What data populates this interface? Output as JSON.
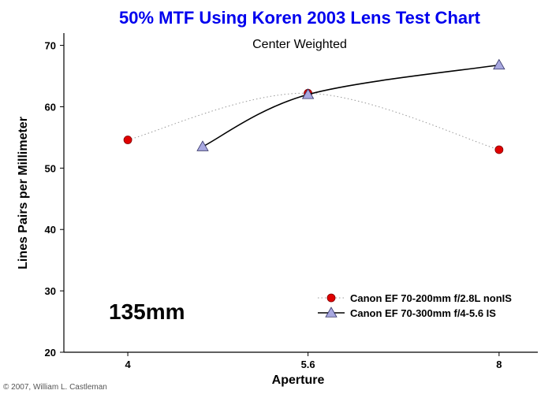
{
  "chart_data": {
    "type": "line",
    "title": "50% MTF Using Koren 2003 Lens Test Chart",
    "subtitle": "Center Weighted",
    "xlabel": "Aperture",
    "ylabel": "Lines Pairs per Millimeter",
    "x_scale": "log",
    "xlim": [
      3.55,
      8.6
    ],
    "ylim": [
      20,
      72
    ],
    "x_ticks": [
      4,
      5.6,
      8
    ],
    "x_tick_labels": [
      "4",
      "5.6",
      "8"
    ],
    "y_ticks": [
      20,
      30,
      40,
      50,
      60,
      70
    ],
    "y_tick_labels": [
      "20",
      "30",
      "40",
      "50",
      "60",
      "70"
    ],
    "grid": false,
    "legend_position": "bottom-right",
    "series": [
      {
        "name": "Canon EF 70-200mm f/2.8L nonIS",
        "marker": "circle",
        "line_style": "dotted",
        "color": "#e00000",
        "line_color": "#999999",
        "x": [
          4,
          5.6,
          8
        ],
        "y": [
          54.6,
          62.2,
          53.0
        ]
      },
      {
        "name": "Canon EF 70-300mm f/4-5.6 IS",
        "marker": "triangle",
        "line_style": "solid",
        "color": "#a8a8e0",
        "line_color": "#000000",
        "x": [
          4.6,
          5.6,
          8
        ],
        "y": [
          53.5,
          62.0,
          66.8
        ]
      }
    ],
    "annotations": [
      {
        "text": "135mm"
      },
      {
        "text": "© 2007, William L. Castleman"
      }
    ]
  },
  "colors": {
    "title": "#0000ee",
    "text": "#000000",
    "axis": "#000000"
  }
}
